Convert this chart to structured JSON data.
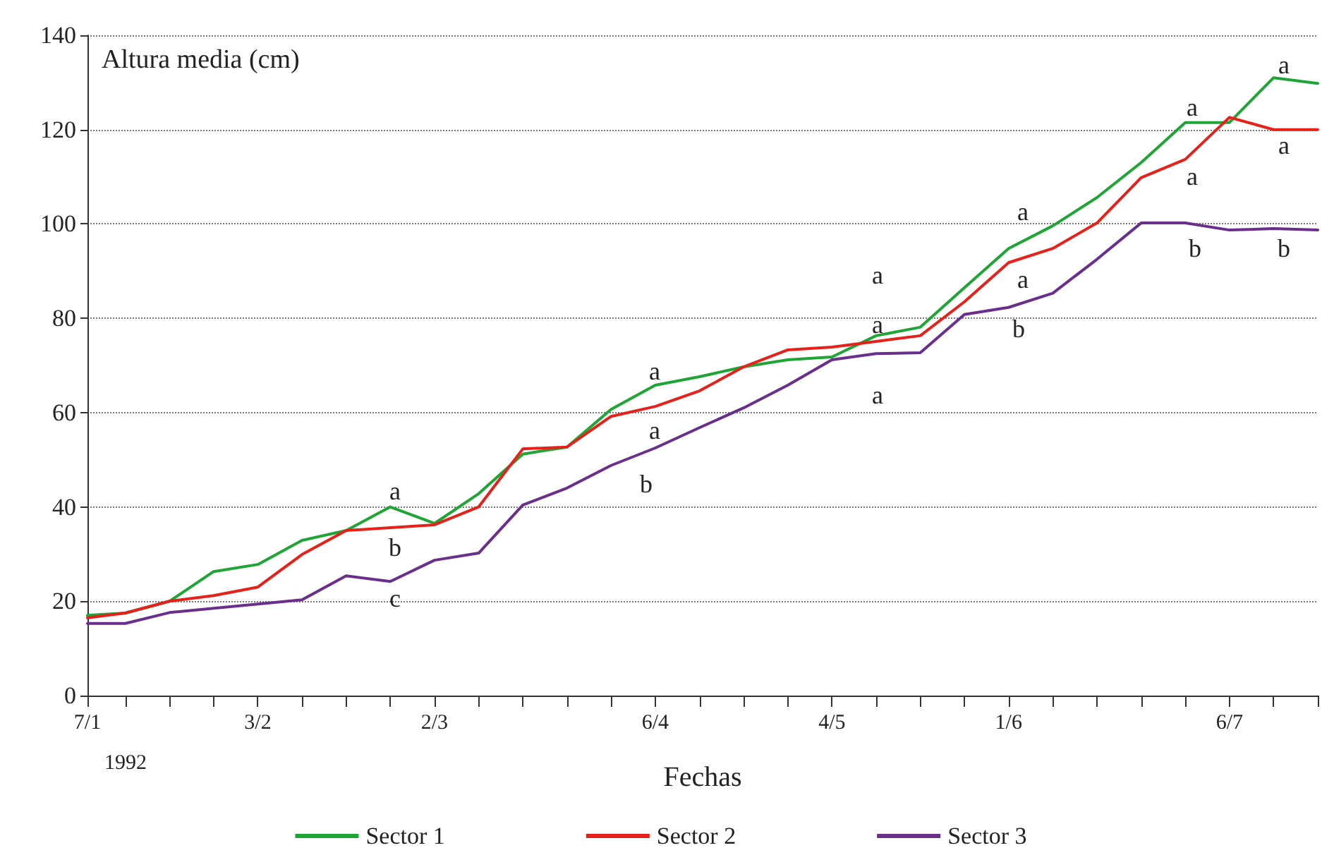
{
  "chart_data": {
    "type": "line",
    "ylabel": "Altura media (cm)",
    "xlabel": "Fechas",
    "x": [
      "1992-01-07",
      "1992-01-13",
      "1992-01-20",
      "1992-01-27",
      "1992-02-03",
      "1992-02-10",
      "1992-02-17",
      "1992-02-24",
      "1992-03-02",
      "1992-03-09",
      "1992-03-16",
      "1992-03-23",
      "1992-03-30",
      "1992-04-06",
      "1992-04-13",
      "1992-04-20",
      "1992-04-27",
      "1992-05-04",
      "1992-05-11",
      "1992-05-18",
      "1992-05-25",
      "1992-06-01",
      "1992-06-08",
      "1992-06-15",
      "1992-06-22",
      "1992-06-29",
      "1992-07-06",
      "1992-07-13",
      "1992-07-20"
    ],
    "series": [
      {
        "name": "Sector 1",
        "color": "#1fa535",
        "values": [
          17,
          17.5,
          20,
          26.3,
          27.8,
          32.9,
          35,
          40,
          36.5,
          42.8,
          51.2,
          52.7,
          60.7,
          65.8,
          67.6,
          69.7,
          71.2,
          71.8,
          76.3,
          78.1,
          86.5,
          94.8,
          99.6,
          105.6,
          113,
          121.5,
          121.5,
          131,
          129.8
        ]
      },
      {
        "name": "Sector 2",
        "color": "#e8201a",
        "values": [
          16.5,
          17.5,
          20,
          21.2,
          23,
          29.9,
          35,
          35.6,
          36.2,
          40,
          52.3,
          52.7,
          59.2,
          61.3,
          64.6,
          69.7,
          73.3,
          73.9,
          75.1,
          76.3,
          83.5,
          91.8,
          94.8,
          100.2,
          109.8,
          113.7,
          122.6,
          120,
          120
        ]
      },
      {
        "name": "Sector 3",
        "color": "#6a2f8c",
        "values": [
          15.3,
          15.3,
          17.6,
          18.5,
          19.4,
          20.3,
          25.4,
          24.2,
          28.7,
          30.2,
          40.4,
          44,
          48.8,
          52.5,
          56.8,
          61,
          65.8,
          71.2,
          72.5,
          72.7,
          80.8,
          82.3,
          85.3,
          92.5,
          100.2,
          100.2,
          98.7,
          99,
          98.7
        ]
      }
    ],
    "xlim": [
      "1992-01-07",
      "1992-07-20"
    ],
    "xticks": [
      {
        "value": "1992-01-07",
        "label": "7/1"
      },
      {
        "value": "1992-01-13",
        "label": null
      },
      {
        "value": "1992-01-20",
        "label": null
      },
      {
        "value": "1992-01-27",
        "label": null
      },
      {
        "value": "1992-02-03",
        "label": "3/2"
      },
      {
        "value": "1992-02-10",
        "label": null
      },
      {
        "value": "1992-02-17",
        "label": null
      },
      {
        "value": "1992-02-24",
        "label": null
      },
      {
        "value": "1992-03-02",
        "label": "2/3"
      },
      {
        "value": "1992-03-09",
        "label": null
      },
      {
        "value": "1992-03-16",
        "label": null
      },
      {
        "value": "1992-03-23",
        "label": null
      },
      {
        "value": "1992-03-30",
        "label": null
      },
      {
        "value": "1992-04-06",
        "label": "6/4"
      },
      {
        "value": "1992-04-13",
        "label": null
      },
      {
        "value": "1992-04-20",
        "label": null
      },
      {
        "value": "1992-04-27",
        "label": null
      },
      {
        "value": "1992-05-04",
        "label": "4/5"
      },
      {
        "value": "1992-05-11",
        "label": null
      },
      {
        "value": "1992-05-18",
        "label": null
      },
      {
        "value": "1992-05-25",
        "label": null
      },
      {
        "value": "1992-06-01",
        "label": "1/6"
      },
      {
        "value": "1992-06-08",
        "label": null
      },
      {
        "value": "1992-06-15",
        "label": null
      },
      {
        "value": "1992-06-22",
        "label": null
      },
      {
        "value": "1992-06-29",
        "label": null
      },
      {
        "value": "1992-07-06",
        "label": "6/7"
      },
      {
        "value": "1992-07-13",
        "label": null
      },
      {
        "value": "1992-07-20",
        "label": null
      }
    ],
    "ylim": [
      0,
      140
    ],
    "yticks": [
      0,
      20,
      40,
      60,
      80,
      100,
      120,
      140
    ],
    "grid": "y",
    "legend": "bottom",
    "marker": "none",
    "line_style": "solid",
    "annotations": [
      "1992",
      "a",
      "b",
      "c",
      "a",
      "a",
      "b",
      "a",
      "a",
      "a",
      "a",
      "a",
      "b",
      "a",
      "a",
      "b",
      "a",
      "a",
      "b"
    ]
  }
}
